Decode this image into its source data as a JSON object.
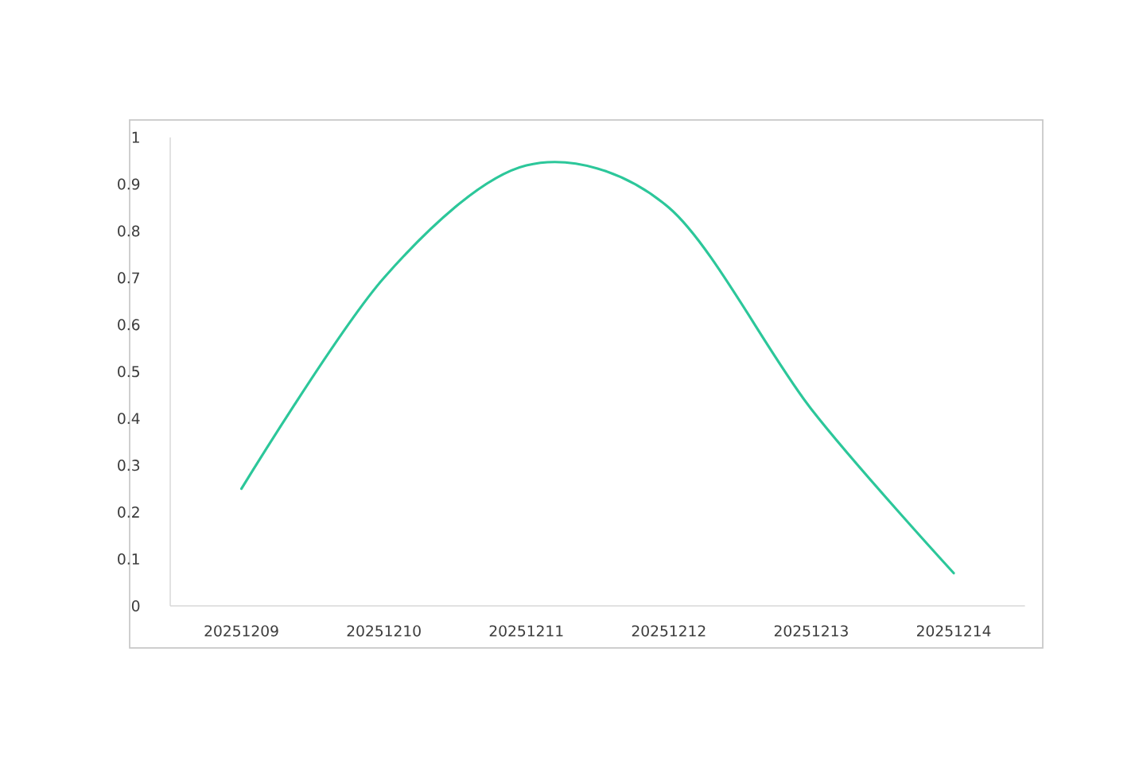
{
  "chart_data": {
    "type": "line",
    "categories": [
      "20251209",
      "20251210",
      "20251211",
      "20251212",
      "20251213",
      "20251214"
    ],
    "series": [
      {
        "values": [
          0.25,
          0.7,
          0.94,
          0.85,
          0.42,
          0.07
        ],
        "color": "#2cc79a"
      }
    ],
    "ylim": [
      0,
      1
    ],
    "yticks": [
      0,
      0.1,
      0.2,
      0.3,
      0.4,
      0.5,
      0.6,
      0.7,
      0.8,
      0.9,
      1
    ],
    "grid": false,
    "marker": "none",
    "line_style": "solid"
  }
}
